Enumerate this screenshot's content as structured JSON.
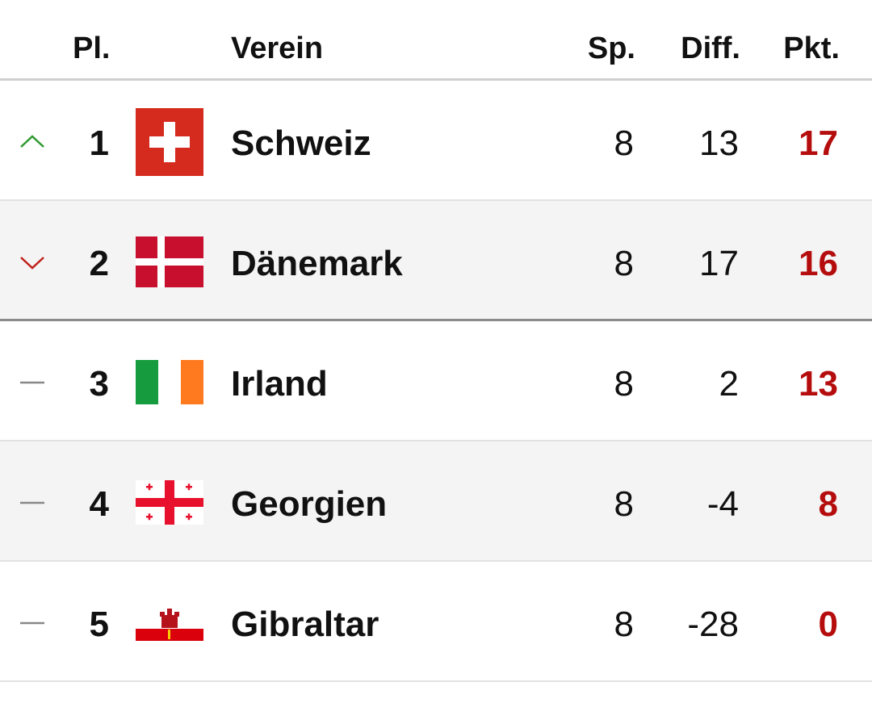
{
  "table": {
    "header": [
      "Pl.",
      "Verein",
      "Sp.",
      "Diff.",
      "Pkt."
    ],
    "rows": [
      [
        1,
        "Schweiz",
        8,
        13,
        17
      ],
      [
        2,
        "Dänemark",
        8,
        17,
        16
      ],
      [
        3,
        "Irland",
        8,
        2,
        13
      ],
      [
        4,
        "Georgien",
        8,
        -4,
        8
      ],
      [
        5,
        "Gibraltar",
        8,
        -28,
        0
      ]
    ]
  }
}
